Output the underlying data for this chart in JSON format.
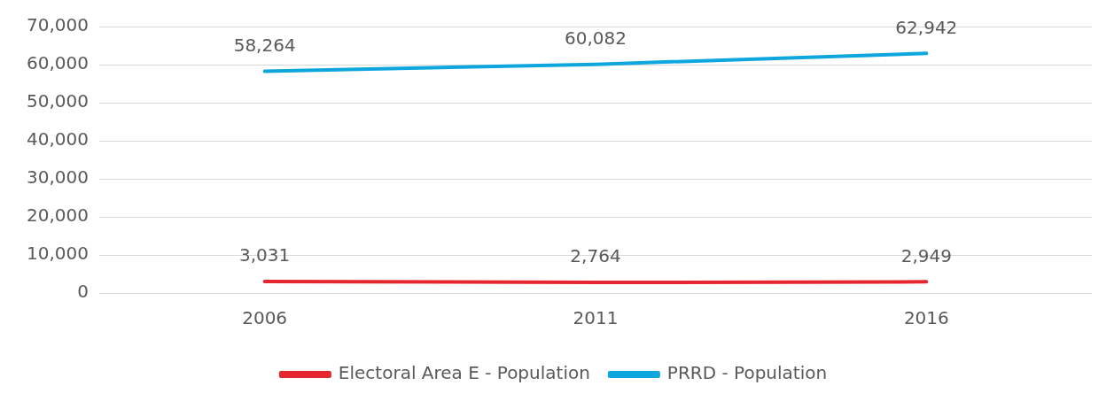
{
  "chart_data": {
    "type": "line",
    "categories": [
      "2006",
      "2011",
      "2016"
    ],
    "series": [
      {
        "name": "Electoral Area E - Population",
        "color": "#e5262e",
        "values": [
          3031,
          2764,
          2949
        ],
        "value_labels": [
          "3,031",
          "2,764",
          "2,949"
        ]
      },
      {
        "name": "PRRD - Population",
        "color": "#0ea7dd",
        "values": [
          58264,
          60082,
          62942
        ],
        "value_labels": [
          "58,264",
          "60,082",
          "62,942"
        ]
      }
    ],
    "ylim": [
      0,
      70000
    ],
    "yticks": [
      0,
      {
        "value": 10000,
        "label": "10,000"
      },
      {
        "value": 20000,
        "label": "20,000"
      },
      {
        "value": 30000,
        "label": "30,000"
      },
      {
        "value": 40000,
        "label": "40,000"
      },
      {
        "value": 50000,
        "label": "50,000"
      },
      {
        "value": 60000,
        "label": "60,000"
      },
      {
        "value": 70000,
        "label": "70,000"
      }
    ],
    "grid": "y",
    "legend": "bottom",
    "marker": "none",
    "line_style": "solid"
  }
}
